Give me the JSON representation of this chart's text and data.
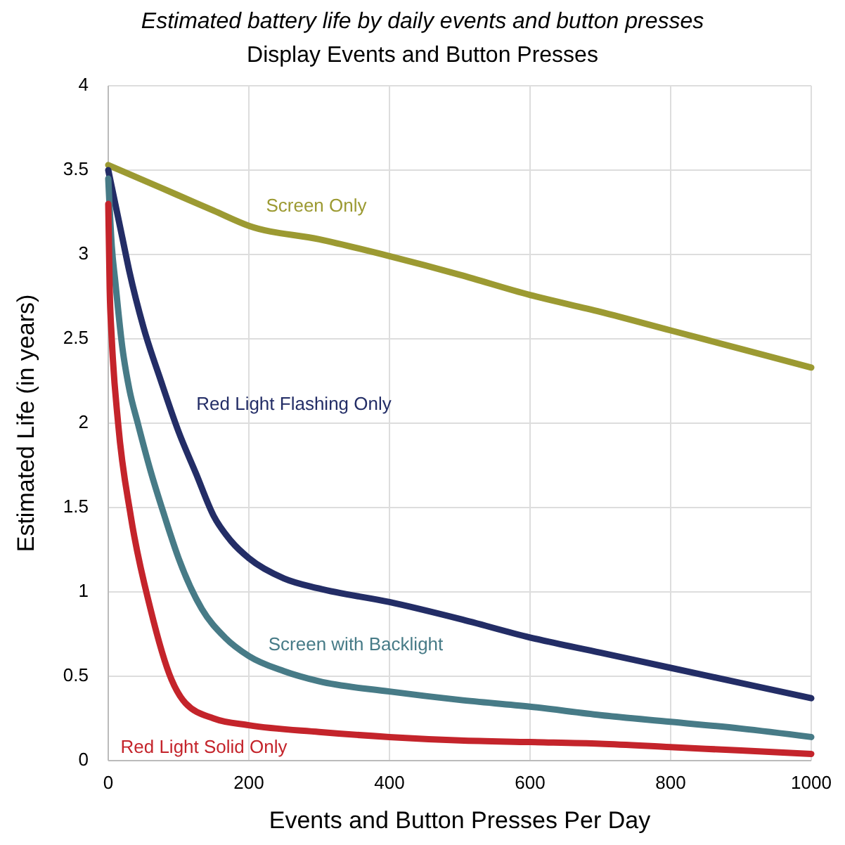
{
  "chart_data": {
    "type": "line",
    "title": "Estimated battery life by daily events and button presses",
    "subtitle": "Display Events and Button Presses",
    "xlabel": "Events and Button Presses Per Day",
    "ylabel": "Estimated Life (in years)",
    "xlim": [
      0,
      1000
    ],
    "ylim": [
      0,
      4
    ],
    "xticks": [
      0,
      200,
      400,
      600,
      800,
      1000
    ],
    "yticks": [
      0,
      0.5,
      1,
      1.5,
      2,
      2.5,
      3,
      3.5,
      4
    ],
    "grid": true,
    "marker": "none",
    "line_style": "solid",
    "series": [
      {
        "name": "Screen Only",
        "color": "#9c9a32",
        "x": [
          0,
          50,
          100,
          150,
          200,
          300,
          400,
          500,
          600,
          700,
          800,
          900,
          1000
        ],
        "values": [
          3.53,
          3.44,
          3.35,
          3.26,
          3.17,
          3.09,
          2.99,
          2.88,
          2.76,
          2.66,
          2.55,
          2.44,
          2.33
        ]
      },
      {
        "name": "Red Light Flashing Only",
        "color": "#232d66",
        "x": [
          0,
          5,
          10,
          20,
          30,
          50,
          75,
          100,
          125,
          150,
          175,
          200,
          250,
          300,
          400,
          500,
          600,
          700,
          800,
          900,
          1000
        ],
        "values": [
          3.5,
          3.4,
          3.3,
          3.1,
          2.9,
          2.57,
          2.25,
          1.95,
          1.7,
          1.45,
          1.3,
          1.2,
          1.08,
          1.02,
          0.94,
          0.84,
          0.73,
          0.64,
          0.55,
          0.46,
          0.37
        ]
      },
      {
        "name": "Screen with Backlight",
        "color": "#477b87",
        "x": [
          0,
          5,
          10,
          20,
          30,
          42,
          60,
          80,
          100,
          133,
          166,
          200,
          250,
          300,
          400,
          500,
          600,
          700,
          800,
          900,
          1000
        ],
        "values": [
          3.45,
          3.05,
          2.84,
          2.45,
          2.2,
          2.0,
          1.72,
          1.45,
          1.2,
          0.9,
          0.73,
          0.62,
          0.53,
          0.47,
          0.41,
          0.36,
          0.32,
          0.27,
          0.23,
          0.19,
          0.14
        ]
      },
      {
        "name": "Red Light Solid Only",
        "color": "#c4242b",
        "x": [
          0,
          2,
          5,
          14,
          32,
          60,
          90,
          110,
          150,
          200,
          300,
          400,
          500,
          600,
          700,
          800,
          900,
          1000
        ],
        "values": [
          3.3,
          2.8,
          2.5,
          2.0,
          1.45,
          0.9,
          0.48,
          0.34,
          0.25,
          0.21,
          0.17,
          0.14,
          0.12,
          0.11,
          0.1,
          0.08,
          0.06,
          0.04
        ]
      }
    ]
  }
}
